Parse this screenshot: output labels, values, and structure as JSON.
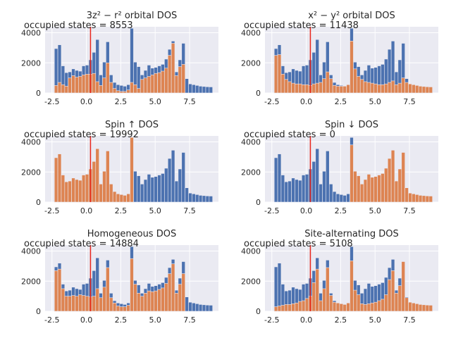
{
  "chart_data": [
    {
      "type": "bar",
      "title": "3z² − r² orbital DOS",
      "annotation": "occupied states = 8553",
      "x_ticks": [
        "-2.5",
        "0.0",
        "2.5",
        "5.0",
        "7.5"
      ],
      "y_ticks": [
        "0",
        "2000",
        "4000"
      ],
      "xlim": [
        -3.0,
        9.6
      ],
      "ylim": [
        0,
        4400
      ],
      "fermi_level": 0.3,
      "x": [
        -2.2,
        -1.95,
        -1.7,
        -1.45,
        -1.2,
        -0.95,
        -0.7,
        -0.45,
        -0.2,
        0.05,
        0.3,
        0.55,
        0.8,
        1.05,
        1.3,
        1.55,
        1.8,
        2.05,
        2.3,
        2.55,
        2.8,
        3.05,
        3.3,
        3.55,
        3.8,
        4.05,
        4.3,
        4.55,
        4.8,
        5.05,
        5.3,
        5.55,
        5.8,
        6.05,
        6.3,
        6.55,
        6.8,
        7.05,
        7.3,
        7.55,
        7.8,
        8.05,
        8.3,
        8.55,
        8.8,
        9.05
      ],
      "series": [
        {
          "values": [
            2950,
            3200,
            1800,
            1350,
            1400,
            1600,
            1500,
            1450,
            1800,
            1850,
            2200,
            2700,
            3550,
            1200,
            2050,
            3400,
            1200,
            700,
            550,
            500,
            450,
            550,
            4300,
            2050,
            1750,
            1200,
            1500,
            1850,
            1650,
            1700,
            1800,
            1900,
            2250,
            2900,
            3450,
            1400,
            2200,
            3300,
            950,
            600,
            550,
            500,
            450,
            430,
            410,
            400
          ]
        },
        {
          "values": [
            500,
            700,
            550,
            450,
            1000,
            1150,
            1050,
            1100,
            1200,
            1250,
            1250,
            1300,
            750,
            500,
            1000,
            2000,
            700,
            300,
            150,
            100,
            100,
            200,
            700,
            550,
            300,
            900,
            1000,
            1100,
            1200,
            1300,
            1350,
            1450,
            1650,
            2500,
            3300,
            1150,
            1750,
            1900,
            0,
            0,
            0,
            0,
            0,
            0,
            0,
            0
          ]
        }
      ]
    },
    {
      "type": "bar",
      "title": "x² − y² orbital DOS",
      "annotation": "occupied states = 11438",
      "x_ticks": [
        "-2.5",
        "0.0",
        "2.5",
        "5.0",
        "7.5"
      ],
      "y_ticks": [
        "0",
        "2000",
        "4000"
      ],
      "xlim": [
        -3.0,
        9.6
      ],
      "ylim": [
        0,
        4400
      ],
      "fermi_level": 0.3,
      "x": [
        -2.2,
        -1.95,
        -1.7,
        -1.45,
        -1.2,
        -0.95,
        -0.7,
        -0.45,
        -0.2,
        0.05,
        0.3,
        0.55,
        0.8,
        1.05,
        1.3,
        1.55,
        1.8,
        2.05,
        2.3,
        2.55,
        2.8,
        3.05,
        3.3,
        3.55,
        3.8,
        4.05,
        4.3,
        4.55,
        4.8,
        5.05,
        5.3,
        5.55,
        5.8,
        6.05,
        6.3,
        6.55,
        6.8,
        7.05,
        7.3,
        7.55,
        7.8,
        8.05,
        8.3,
        8.55,
        8.8,
        9.05
      ],
      "series": [
        {
          "values": [
            2950,
            3200,
            1800,
            1350,
            1400,
            1600,
            1500,
            1450,
            1800,
            1850,
            2200,
            2700,
            3550,
            1200,
            2050,
            3400,
            1200,
            700,
            550,
            500,
            450,
            550,
            4300,
            2050,
            1750,
            1200,
            1500,
            1850,
            1650,
            1700,
            1800,
            1900,
            2250,
            2900,
            3450,
            1400,
            2200,
            3300,
            950,
            600,
            550,
            500,
            450,
            430,
            410,
            400
          ]
        },
        {
          "values": [
            2500,
            2550,
            1250,
            900,
            750,
            650,
            600,
            600,
            550,
            550,
            500,
            600,
            650,
            700,
            950,
            1400,
            950,
            500,
            450,
            450,
            450,
            550,
            3450,
            1600,
            1100,
            900,
            750,
            700,
            650,
            600,
            550,
            550,
            600,
            700,
            800,
            550,
            650,
            1000,
            700,
            600,
            550,
            500,
            450,
            430,
            410,
            400
          ]
        }
      ]
    },
    {
      "type": "bar",
      "title": "Spin ↑ DOS",
      "annotation": "occupied states = 19992",
      "x_ticks": [
        "-2.5",
        "0.0",
        "2.5",
        "5.0",
        "7.5"
      ],
      "y_ticks": [
        "0",
        "2000",
        "4000"
      ],
      "xlim": [
        -3.0,
        9.6
      ],
      "ylim": [
        0,
        4400
      ],
      "fermi_level": 0.3,
      "x": [
        -2.2,
        -1.95,
        -1.7,
        -1.45,
        -1.2,
        -0.95,
        -0.7,
        -0.45,
        -0.2,
        0.05,
        0.3,
        0.55,
        0.8,
        1.05,
        1.3,
        1.55,
        1.8,
        2.05,
        2.3,
        2.55,
        2.8,
        3.05,
        3.3,
        3.55,
        3.8,
        4.05,
        4.3,
        4.55,
        4.8,
        5.05,
        5.3,
        5.55,
        5.8,
        6.05,
        6.3,
        6.55,
        6.8,
        7.05,
        7.3,
        7.55,
        7.8,
        8.05,
        8.3,
        8.55,
        8.8,
        9.05
      ],
      "series": [
        {
          "values": [
            2950,
            3200,
            1800,
            1350,
            1400,
            1600,
            1500,
            1450,
            1800,
            1850,
            2200,
            2700,
            3550,
            1200,
            2050,
            3400,
            1200,
            700,
            550,
            500,
            450,
            550,
            4300,
            2050,
            1750,
            1200,
            1500,
            1850,
            1650,
            1700,
            1800,
            1900,
            2250,
            2900,
            3450,
            1400,
            2200,
            3300,
            950,
            600,
            550,
            500,
            450,
            430,
            410,
            400
          ]
        },
        {
          "values": [
            2950,
            3200,
            1800,
            1350,
            1400,
            1600,
            1500,
            1450,
            1800,
            1850,
            2200,
            2700,
            3550,
            1200,
            2050,
            3400,
            1200,
            700,
            550,
            500,
            450,
            550,
            4300,
            0,
            0,
            0,
            0,
            0,
            0,
            0,
            0,
            0,
            0,
            0,
            0,
            0,
            0,
            0,
            0,
            0,
            0,
            0,
            0,
            0,
            0,
            0
          ]
        }
      ]
    },
    {
      "type": "bar",
      "title": "Spin ↓ DOS",
      "annotation": "occupied states = 0",
      "x_ticks": [
        "-2.5",
        "0.0",
        "2.5",
        "5.0",
        "7.5"
      ],
      "y_ticks": [
        "0",
        "2000",
        "4000"
      ],
      "xlim": [
        -3.0,
        9.6
      ],
      "ylim": [
        0,
        4400
      ],
      "fermi_level": 0.3,
      "x": [
        -2.2,
        -1.95,
        -1.7,
        -1.45,
        -1.2,
        -0.95,
        -0.7,
        -0.45,
        -0.2,
        0.05,
        0.3,
        0.55,
        0.8,
        1.05,
        1.3,
        1.55,
        1.8,
        2.05,
        2.3,
        2.55,
        2.8,
        3.05,
        3.3,
        3.55,
        3.8,
        4.05,
        4.3,
        4.55,
        4.8,
        5.05,
        5.3,
        5.55,
        5.8,
        6.05,
        6.3,
        6.55,
        6.8,
        7.05,
        7.3,
        7.55,
        7.8,
        8.05,
        8.3,
        8.55,
        8.8,
        9.05
      ],
      "series": [
        {
          "values": [
            2950,
            3200,
            1800,
            1350,
            1400,
            1600,
            1500,
            1450,
            1800,
            1850,
            2200,
            2700,
            3550,
            1200,
            2050,
            3400,
            1200,
            700,
            550,
            500,
            450,
            550,
            4300,
            2050,
            1750,
            1200,
            1500,
            1850,
            1650,
            1700,
            1800,
            1900,
            2250,
            2900,
            3450,
            1400,
            2200,
            3300,
            950,
            600,
            550,
            500,
            450,
            430,
            410,
            400
          ]
        },
        {
          "values": [
            0,
            0,
            0,
            0,
            0,
            0,
            0,
            0,
            0,
            0,
            0,
            0,
            0,
            0,
            0,
            0,
            0,
            0,
            0,
            0,
            0,
            0,
            3800,
            2050,
            1750,
            1200,
            1500,
            1850,
            1650,
            1700,
            1800,
            1900,
            2250,
            2900,
            3450,
            1400,
            2200,
            3300,
            950,
            600,
            550,
            500,
            450,
            430,
            410,
            400
          ]
        }
      ]
    },
    {
      "type": "bar",
      "title": "Homogeneous DOS",
      "annotation": "occupied states = 14884",
      "x_ticks": [
        "-2.5",
        "0.0",
        "2.5",
        "5.0",
        "7.5"
      ],
      "y_ticks": [
        "0",
        "2000",
        "4000"
      ],
      "xlim": [
        -3.0,
        9.6
      ],
      "ylim": [
        0,
        4400
      ],
      "fermi_level": 0.3,
      "x": [
        -2.2,
        -1.95,
        -1.7,
        -1.45,
        -1.2,
        -0.95,
        -0.7,
        -0.45,
        -0.2,
        0.05,
        0.3,
        0.55,
        0.8,
        1.05,
        1.3,
        1.55,
        1.8,
        2.05,
        2.3,
        2.55,
        2.8,
        3.05,
        3.3,
        3.55,
        3.8,
        4.05,
        4.3,
        4.55,
        4.8,
        5.05,
        5.3,
        5.55,
        5.8,
        6.05,
        6.3,
        6.55,
        6.8,
        7.05,
        7.3,
        7.55,
        7.8,
        8.05,
        8.3,
        8.55,
        8.8,
        9.05
      ],
      "series": [
        {
          "values": [
            2950,
            3200,
            1800,
            1350,
            1400,
            1600,
            1500,
            1450,
            1800,
            1850,
            2200,
            2700,
            3550,
            1200,
            2050,
            3400,
            1200,
            700,
            550,
            500,
            450,
            550,
            4300,
            2050,
            1750,
            1200,
            1500,
            1850,
            1650,
            1700,
            1800,
            1900,
            2250,
            2900,
            3450,
            1400,
            2200,
            3300,
            950,
            600,
            550,
            500,
            450,
            430,
            410,
            400
          ]
        },
        {
          "values": [
            2700,
            2800,
            1500,
            1000,
            1000,
            1050,
            1000,
            1100,
            1050,
            1000,
            950,
            1000,
            1500,
            900,
            1600,
            2900,
            900,
            550,
            350,
            300,
            300,
            400,
            3500,
            1800,
            1200,
            1000,
            1200,
            1350,
            1300,
            1350,
            1450,
            1550,
            1850,
            2500,
            3150,
            1200,
            1800,
            2500,
            0,
            0,
            0,
            0,
            0,
            0,
            0,
            0
          ]
        }
      ]
    },
    {
      "type": "bar",
      "title": "Site-alternating DOS",
      "annotation": "occupied states = 5108",
      "x_ticks": [
        "-2.5",
        "0.0",
        "2.5",
        "5.0",
        "7.5"
      ],
      "y_ticks": [
        "0",
        "2000",
        "4000"
      ],
      "xlim": [
        -3.0,
        9.6
      ],
      "ylim": [
        0,
        4400
      ],
      "fermi_level": 0.3,
      "x": [
        -2.2,
        -1.95,
        -1.7,
        -1.45,
        -1.2,
        -0.95,
        -0.7,
        -0.45,
        -0.2,
        0.05,
        0.3,
        0.55,
        0.8,
        1.05,
        1.3,
        1.55,
        1.8,
        2.05,
        2.3,
        2.55,
        2.8,
        3.05,
        3.3,
        3.55,
        3.8,
        4.05,
        4.3,
        4.55,
        4.8,
        5.05,
        5.3,
        5.55,
        5.8,
        6.05,
        6.3,
        6.55,
        6.8,
        7.05,
        7.3,
        7.55,
        7.8,
        8.05,
        8.3,
        8.55,
        8.8,
        9.05
      ],
      "series": [
        {
          "values": [
            2950,
            3200,
            1800,
            1350,
            1400,
            1600,
            1500,
            1450,
            1800,
            1850,
            2200,
            2700,
            3550,
            1200,
            2050,
            3400,
            1200,
            700,
            550,
            500,
            450,
            550,
            4300,
            2050,
            1750,
            1200,
            1500,
            1850,
            1650,
            1700,
            1800,
            1900,
            2250,
            2900,
            3450,
            1400,
            2200,
            3300,
            950,
            600,
            550,
            500,
            450,
            430,
            410,
            400
          ]
        },
        {
          "values": [
            300,
            350,
            400,
            450,
            450,
            500,
            550,
            650,
            700,
            850,
            1000,
            1900,
            2800,
            700,
            1500,
            2900,
            1050,
            600,
            550,
            500,
            450,
            550,
            3350,
            1400,
            1100,
            500,
            450,
            500,
            550,
            600,
            700,
            800,
            1100,
            2100,
            2700,
            1200,
            1700,
            3300,
            900,
            600,
            550,
            500,
            450,
            430,
            410,
            400
          ]
        }
      ]
    }
  ],
  "colors": {
    "axes_bg": "#eaeaf2",
    "grid": "#ffffff",
    "series_blue": "#4c72b0",
    "series_orange": "#dd8452",
    "fermi_line": "#e8261c",
    "text": "#262626"
  }
}
